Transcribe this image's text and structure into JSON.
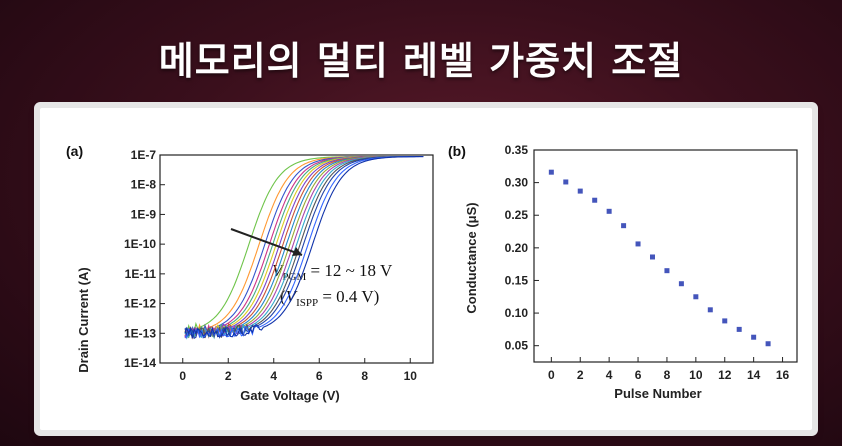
{
  "slide": {
    "title": "메모리의 멀티 레벨 가중치 조절"
  },
  "chart_data": [
    {
      "type": "line",
      "panel_label": "(a)",
      "xlabel": "Gate Voltage (V)",
      "ylabel": "Drain Current (A)",
      "xlim": [
        -1,
        11
      ],
      "ylim_exp": [
        -14,
        -7
      ],
      "yscale": "log",
      "x_ticks": [
        "0",
        "2",
        "4",
        "6",
        "8",
        "10"
      ],
      "x_tick_values": [
        0,
        2,
        4,
        6,
        8,
        10
      ],
      "y_ticks": [
        "1E-7",
        "1E-8",
        "1E-9",
        "1E-10",
        "1E-11",
        "1E-12",
        "1E-13",
        "1E-14"
      ],
      "y_tick_exps": [
        -7,
        -8,
        -9,
        -10,
        -11,
        -12,
        -13,
        -14
      ],
      "annotation": {
        "line1_main": "V",
        "line1_sub": "PGM",
        "line1_rest": " = 12 ~ 18 V",
        "line2_open": "(",
        "line2_main": "V",
        "line2_sub": "ISPP",
        "line2_rest": " = 0.4 V)"
      },
      "series": [
        {
          "vth": 2.9,
          "color": "#6fc44a"
        },
        {
          "vth": 3.35,
          "color": "#ff9933"
        },
        {
          "vth": 3.6,
          "color": "#3355cc"
        },
        {
          "vth": 3.8,
          "color": "#cc3388"
        },
        {
          "vth": 3.95,
          "color": "#44aa88"
        },
        {
          "vth": 4.1,
          "color": "#ddcc22"
        },
        {
          "vth": 4.25,
          "color": "#7744cc"
        },
        {
          "vth": 4.4,
          "color": "#cc5533"
        },
        {
          "vth": 4.55,
          "color": "#2288cc"
        },
        {
          "vth": 4.7,
          "color": "#99aa33"
        },
        {
          "vth": 4.85,
          "color": "#aa44aa"
        },
        {
          "vth": 5.0,
          "color": "#33aacc"
        },
        {
          "vth": 5.15,
          "color": "#555555"
        },
        {
          "vth": 5.3,
          "color": "#2244aa"
        },
        {
          "vth": 5.5,
          "color": "#3366ff"
        },
        {
          "vth": 5.7,
          "color": "#1133aa"
        }
      ],
      "off_current_exp": -13,
      "on_current_exp": -7.05
    },
    {
      "type": "scatter",
      "panel_label": "(b)",
      "xlabel": "Pulse Number",
      "ylabel": "Conductance (μS)",
      "xlim": [
        -1.2,
        17
      ],
      "ylim": [
        0.025,
        0.35
      ],
      "x_ticks": [
        "0",
        "2",
        "4",
        "6",
        "8",
        "10",
        "12",
        "14",
        "16"
      ],
      "x_tick_values": [
        0,
        2,
        4,
        6,
        8,
        10,
        12,
        14,
        16
      ],
      "y_ticks": [
        "0.35",
        "0.30",
        "0.25",
        "0.20",
        "0.15",
        "0.10",
        "0.05"
      ],
      "y_tick_values": [
        0.35,
        0.3,
        0.25,
        0.2,
        0.15,
        0.1,
        0.05
      ],
      "color": "#4455bb",
      "x": [
        0,
        1,
        2,
        3,
        4,
        5,
        6,
        7,
        8,
        9,
        10,
        11,
        12,
        13,
        14,
        15
      ],
      "y": [
        0.316,
        0.301,
        0.287,
        0.273,
        0.256,
        0.234,
        0.206,
        0.186,
        0.165,
        0.145,
        0.125,
        0.105,
        0.088,
        0.075,
        0.063,
        0.053
      ]
    }
  ]
}
